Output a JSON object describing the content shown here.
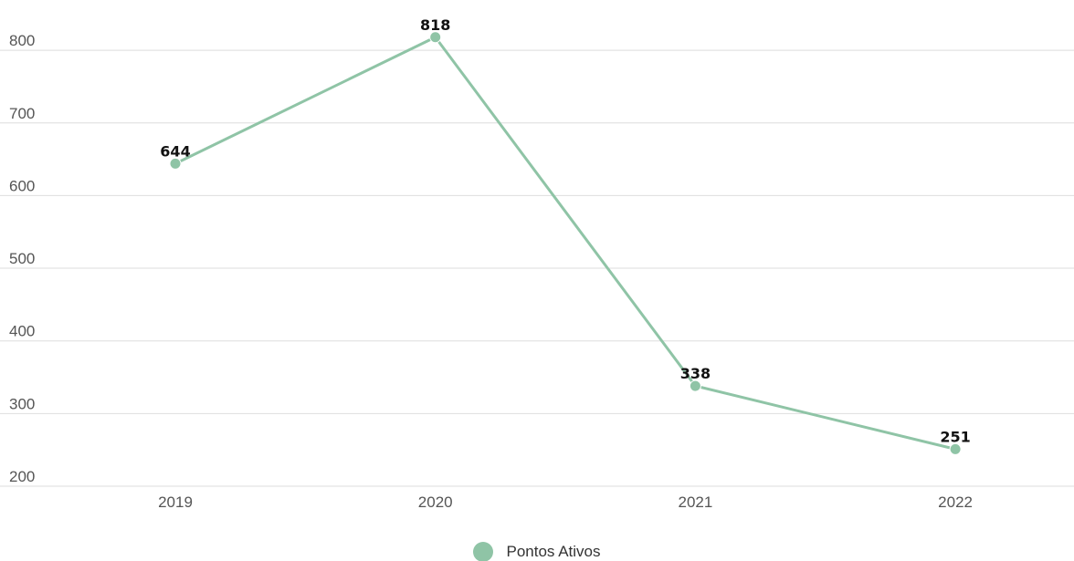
{
  "chart_data": {
    "type": "line",
    "categories": [
      "2019",
      "2020",
      "2021",
      "2022"
    ],
    "series": [
      {
        "name": "Pontos Ativos",
        "values": [
          644,
          818,
          338,
          251
        ],
        "color": "#8fc4a6"
      }
    ],
    "ylim": [
      200,
      830
    ],
    "yticks": [
      200,
      300,
      400,
      500,
      600,
      700,
      800
    ],
    "grid": true,
    "data_labels": true,
    "legend_position": "bottom-center",
    "title": "",
    "xlabel": "",
    "ylabel": ""
  },
  "legend": {
    "label": "Pontos Ativos",
    "color": "#8fc4a6"
  }
}
